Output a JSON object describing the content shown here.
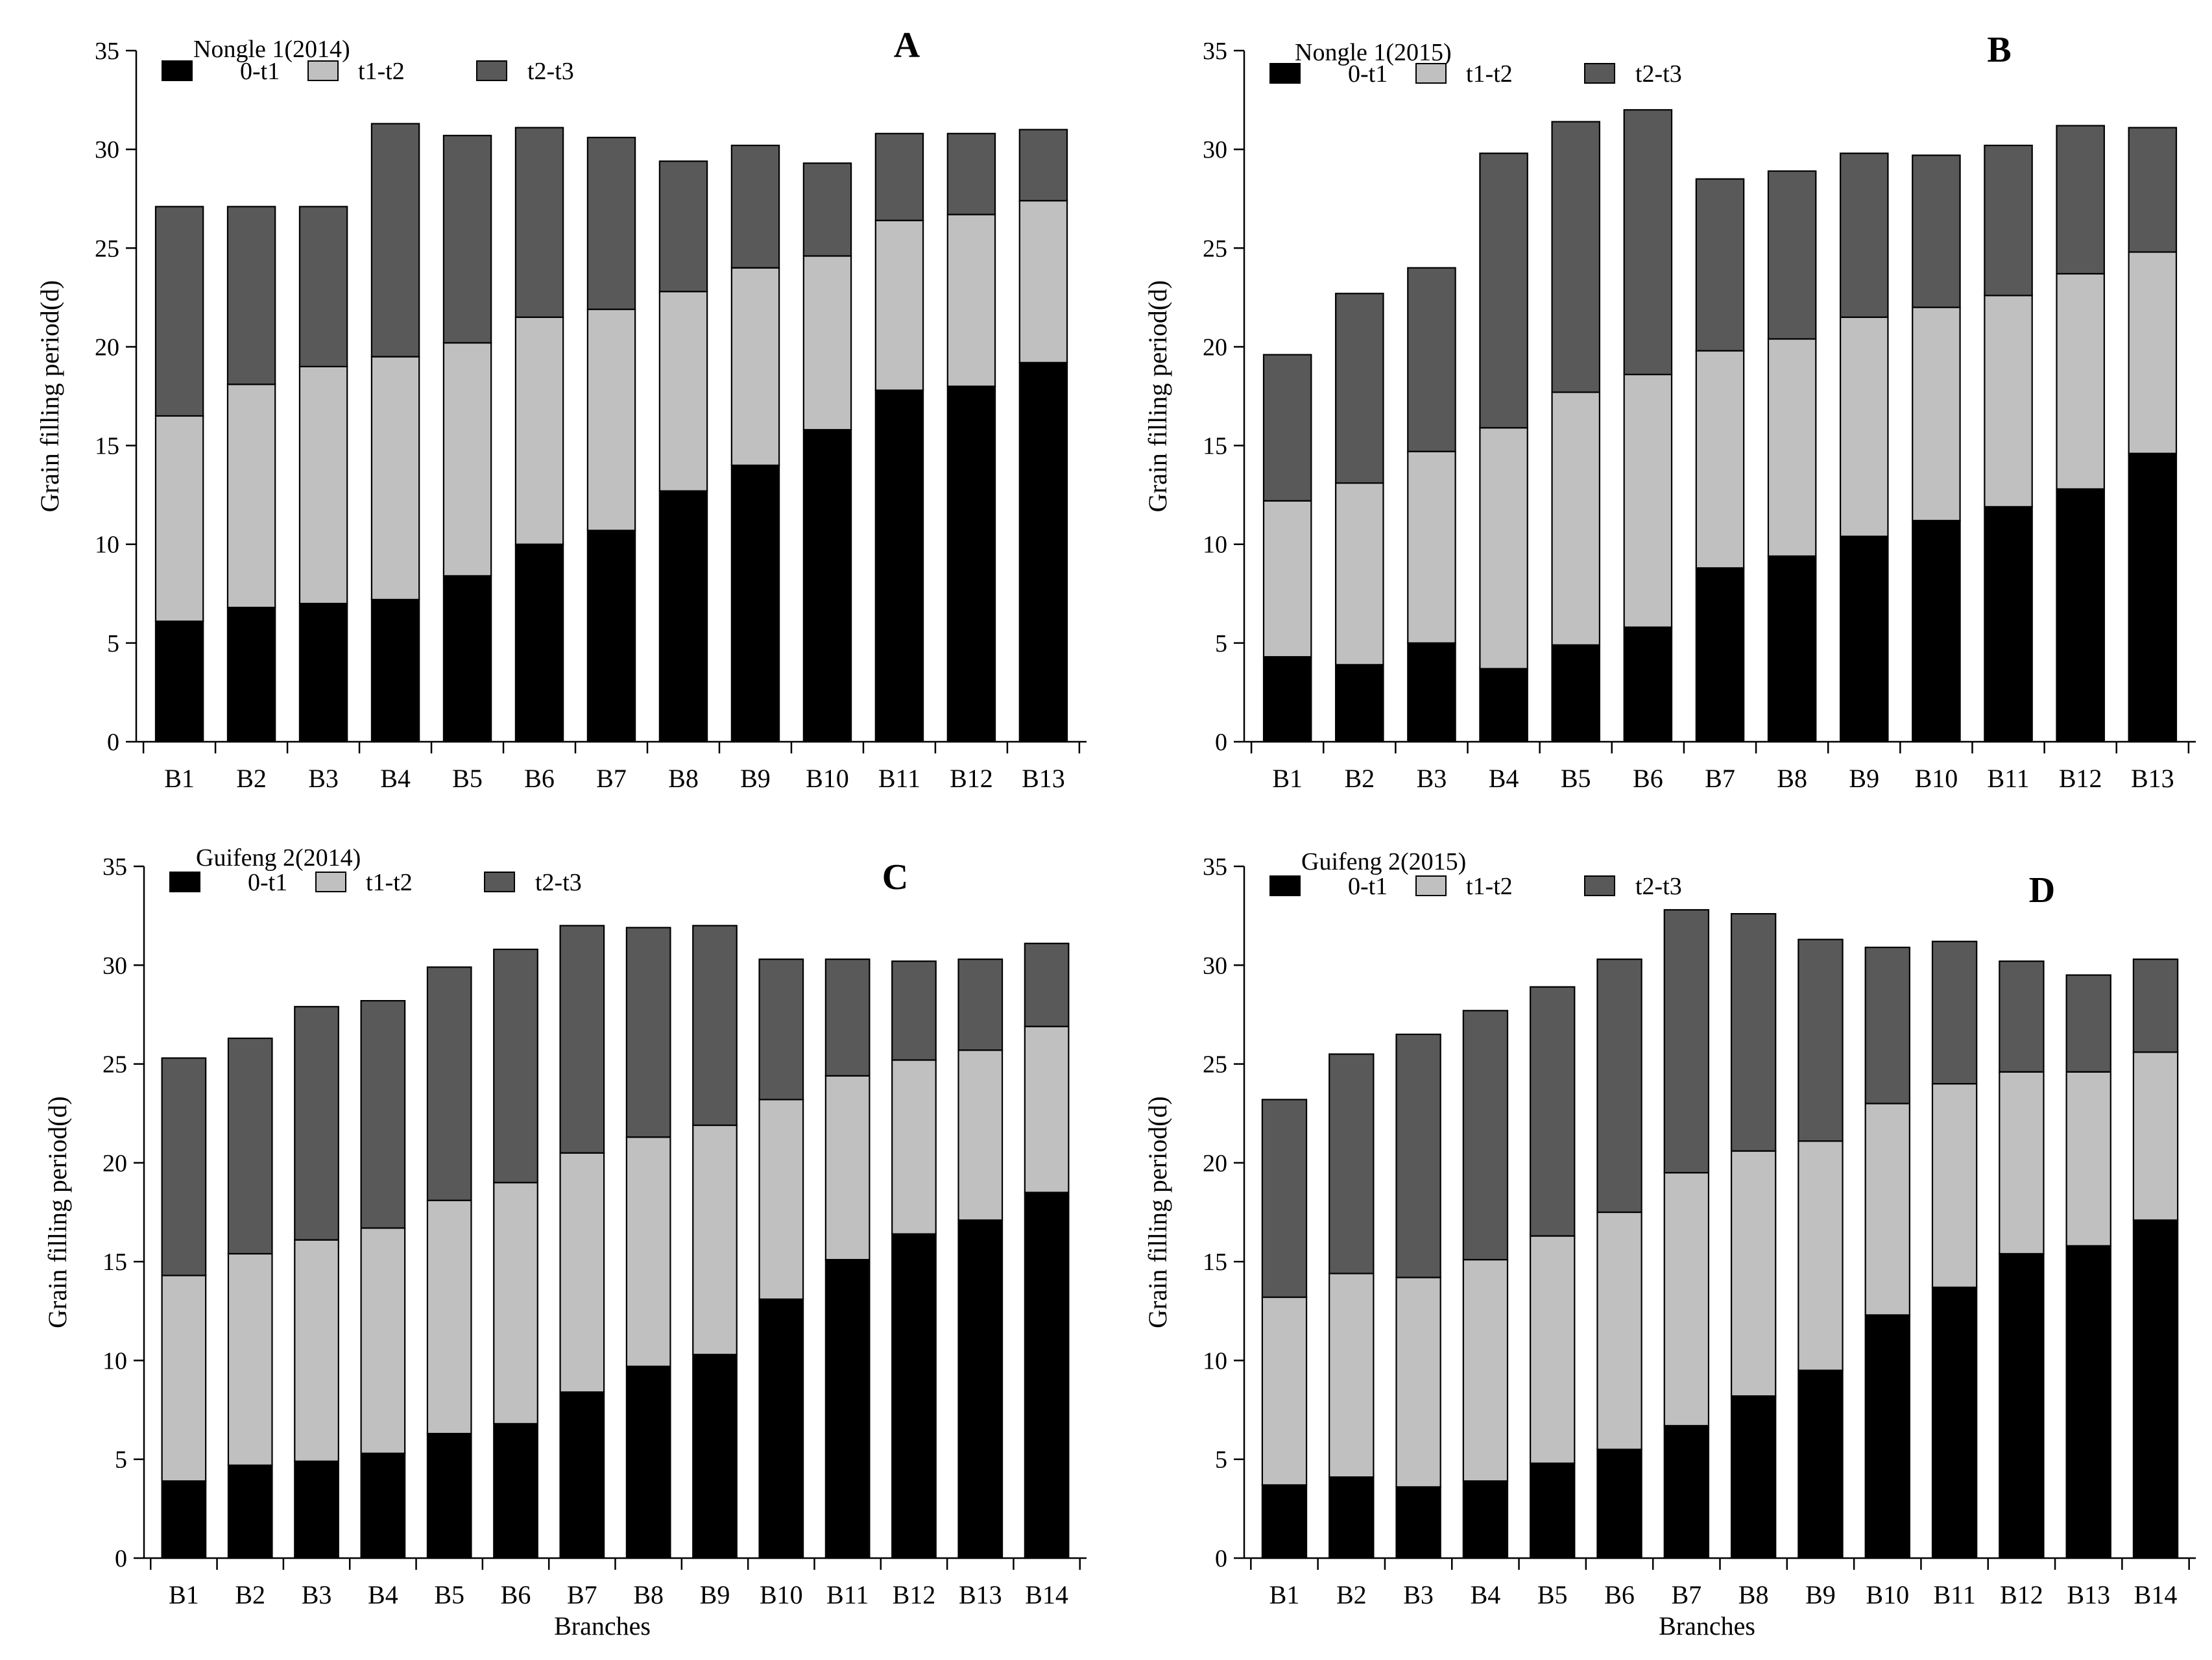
{
  "colors": {
    "0-t1": "#000000",
    "t1-t2": "#c0c0c0",
    "t2-t3": "#595959"
  },
  "chart_data": [
    {
      "type": "bar",
      "stacked": true,
      "panel": "A",
      "title": "Nongle 1(2014)",
      "xlabel": "",
      "ylabel": "Grain filling period(d)",
      "ylim": [
        0,
        35
      ],
      "yticks": [
        0,
        5,
        10,
        15,
        20,
        25,
        30,
        35
      ],
      "categories": [
        "B1",
        "B2",
        "B3",
        "B4",
        "B5",
        "B6",
        "B7",
        "B8",
        "B9",
        "B10",
        "B11",
        "B12",
        "B13"
      ],
      "series": [
        {
          "name": "0-t1",
          "values": [
            6.1,
            6.8,
            7.0,
            7.2,
            8.4,
            10.0,
            10.7,
            12.7,
            14.0,
            15.8,
            17.8,
            18.0,
            19.2
          ]
        },
        {
          "name": "t1-t2",
          "values": [
            10.4,
            11.3,
            12.0,
            12.3,
            11.8,
            11.5,
            11.2,
            10.1,
            10.0,
            8.8,
            8.6,
            8.7,
            8.2
          ]
        },
        {
          "name": "t2-t3",
          "values": [
            10.6,
            9.0,
            8.1,
            11.8,
            10.5,
            9.6,
            8.7,
            6.6,
            6.2,
            4.7,
            4.4,
            4.1,
            3.6
          ]
        }
      ]
    },
    {
      "type": "bar",
      "stacked": true,
      "panel": "B",
      "title": "Nongle 1(2015)",
      "xlabel": "",
      "ylabel": "Grain filling period(d)",
      "ylim": [
        0,
        35
      ],
      "yticks": [
        0,
        5,
        10,
        15,
        20,
        25,
        30,
        35
      ],
      "categories": [
        "B1",
        "B2",
        "B3",
        "B4",
        "B5",
        "B6",
        "B7",
        "B8",
        "B9",
        "B10",
        "B11",
        "B12",
        "B13"
      ],
      "series": [
        {
          "name": "0-t1",
          "values": [
            4.3,
            3.9,
            5.0,
            3.7,
            4.9,
            5.8,
            8.8,
            9.4,
            10.4,
            11.2,
            11.9,
            12.8,
            14.6
          ]
        },
        {
          "name": "t1-t2",
          "values": [
            7.9,
            9.2,
            9.7,
            12.2,
            12.8,
            12.8,
            11.0,
            11.0,
            11.1,
            10.8,
            10.7,
            10.9,
            10.2
          ]
        },
        {
          "name": "t2-t3",
          "values": [
            7.4,
            9.6,
            9.3,
            13.9,
            13.7,
            13.4,
            8.7,
            8.5,
            8.3,
            7.7,
            7.6,
            7.5,
            6.3
          ]
        }
      ]
    },
    {
      "type": "bar",
      "stacked": true,
      "panel": "C",
      "title": "Guifeng 2(2014)",
      "xlabel": "",
      "ylabel": "Grain filling period(d)",
      "ylim": [
        0,
        35
      ],
      "yticks": [
        0,
        5,
        10,
        15,
        20,
        25,
        30,
        35
      ],
      "categories": [
        "B1",
        "B2",
        "B3",
        "B4",
        "B5",
        "B6",
        "B7",
        "B8",
        "B9",
        "B10",
        "B11",
        "B12",
        "B13",
        "B14"
      ],
      "series": [
        {
          "name": "0-t1",
          "values": [
            3.9,
            4.7,
            4.9,
            5.3,
            6.3,
            6.8,
            8.4,
            9.7,
            10.3,
            13.1,
            15.1,
            16.4,
            17.1,
            18.5
          ]
        },
        {
          "name": "t1-t2",
          "values": [
            10.4,
            10.7,
            11.2,
            11.4,
            11.8,
            12.2,
            12.1,
            11.6,
            11.6,
            10.1,
            9.3,
            8.8,
            8.6,
            8.4
          ]
        },
        {
          "name": "t2-t3",
          "values": [
            11.0,
            10.9,
            11.8,
            11.5,
            11.8,
            11.8,
            11.5,
            10.6,
            10.1,
            7.1,
            5.9,
            5.0,
            4.6,
            4.2
          ]
        }
      ]
    },
    {
      "type": "bar",
      "stacked": true,
      "panel": "D",
      "title": "Guifeng 2(2015)",
      "xlabel": "Branches",
      "ylabel": "Grain filling period(d)",
      "ylim": [
        0,
        35
      ],
      "yticks": [
        0,
        5,
        10,
        15,
        20,
        25,
        30,
        35
      ],
      "categories": [
        "B1",
        "B2",
        "B3",
        "B4",
        "B5",
        "B6",
        "B7",
        "B8",
        "B9",
        "B10",
        "B11",
        "B12",
        "B13",
        "B14"
      ],
      "series": [
        {
          "name": "0-t1",
          "values": [
            3.7,
            4.1,
            3.6,
            3.9,
            4.8,
            5.5,
            6.7,
            8.2,
            9.5,
            12.3,
            13.7,
            15.4,
            15.8,
            17.1
          ]
        },
        {
          "name": "t1-t2",
          "values": [
            9.5,
            10.3,
            10.6,
            11.2,
            11.5,
            12.0,
            12.8,
            12.4,
            11.6,
            10.7,
            10.3,
            9.2,
            8.8,
            8.5
          ]
        },
        {
          "name": "t2-t3",
          "values": [
            10.0,
            11.1,
            12.3,
            12.6,
            12.6,
            12.8,
            13.3,
            12.0,
            10.2,
            7.9,
            7.2,
            5.6,
            4.9,
            4.7
          ]
        }
      ]
    }
  ],
  "shared_xlabel": "Branches"
}
